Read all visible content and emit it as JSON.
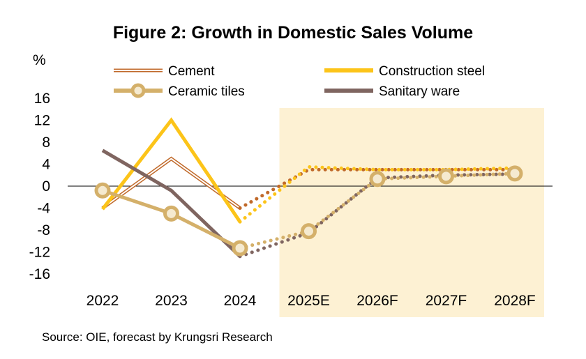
{
  "chart_data": {
    "type": "line",
    "title": "Figure 2: Growth in Domestic Sales Volume",
    "ylabel": "%",
    "xlabel": "",
    "categories": [
      "2022",
      "2023",
      "2024",
      "2025E",
      "2026F",
      "2027F",
      "2028F"
    ],
    "yticks": [
      "16",
      "12",
      "8",
      "4",
      "0",
      "-4",
      "-8",
      "-12",
      "-16"
    ],
    "ylim": [
      -16,
      16
    ],
    "forecast_start": "2025E",
    "forecast_band_color": "#fdf1d3",
    "series": [
      {
        "name": "Cement",
        "style": "double",
        "color": "#c0692a",
        "values": [
          -4,
          5,
          -4,
          3,
          3,
          3,
          3
        ]
      },
      {
        "name": "Construction steel",
        "style": "thick",
        "color": "#fcc419",
        "values": [
          -4.2,
          12,
          -6.5,
          3.5,
          3,
          3,
          3.3
        ]
      },
      {
        "name": "Ceramic tiles",
        "style": "marker",
        "color": "#d4b06a",
        "values": [
          -0.8,
          -5,
          -11.3,
          -8.2,
          1.3,
          1.8,
          2.3
        ]
      },
      {
        "name": "Sanitary ware",
        "style": "solid",
        "color": "#7f6560",
        "values": [
          6.5,
          -0.8,
          -12.8,
          -8.5,
          1.5,
          2,
          2.2
        ]
      }
    ]
  },
  "source": "Source: OIE, forecast by Krungsri Research"
}
